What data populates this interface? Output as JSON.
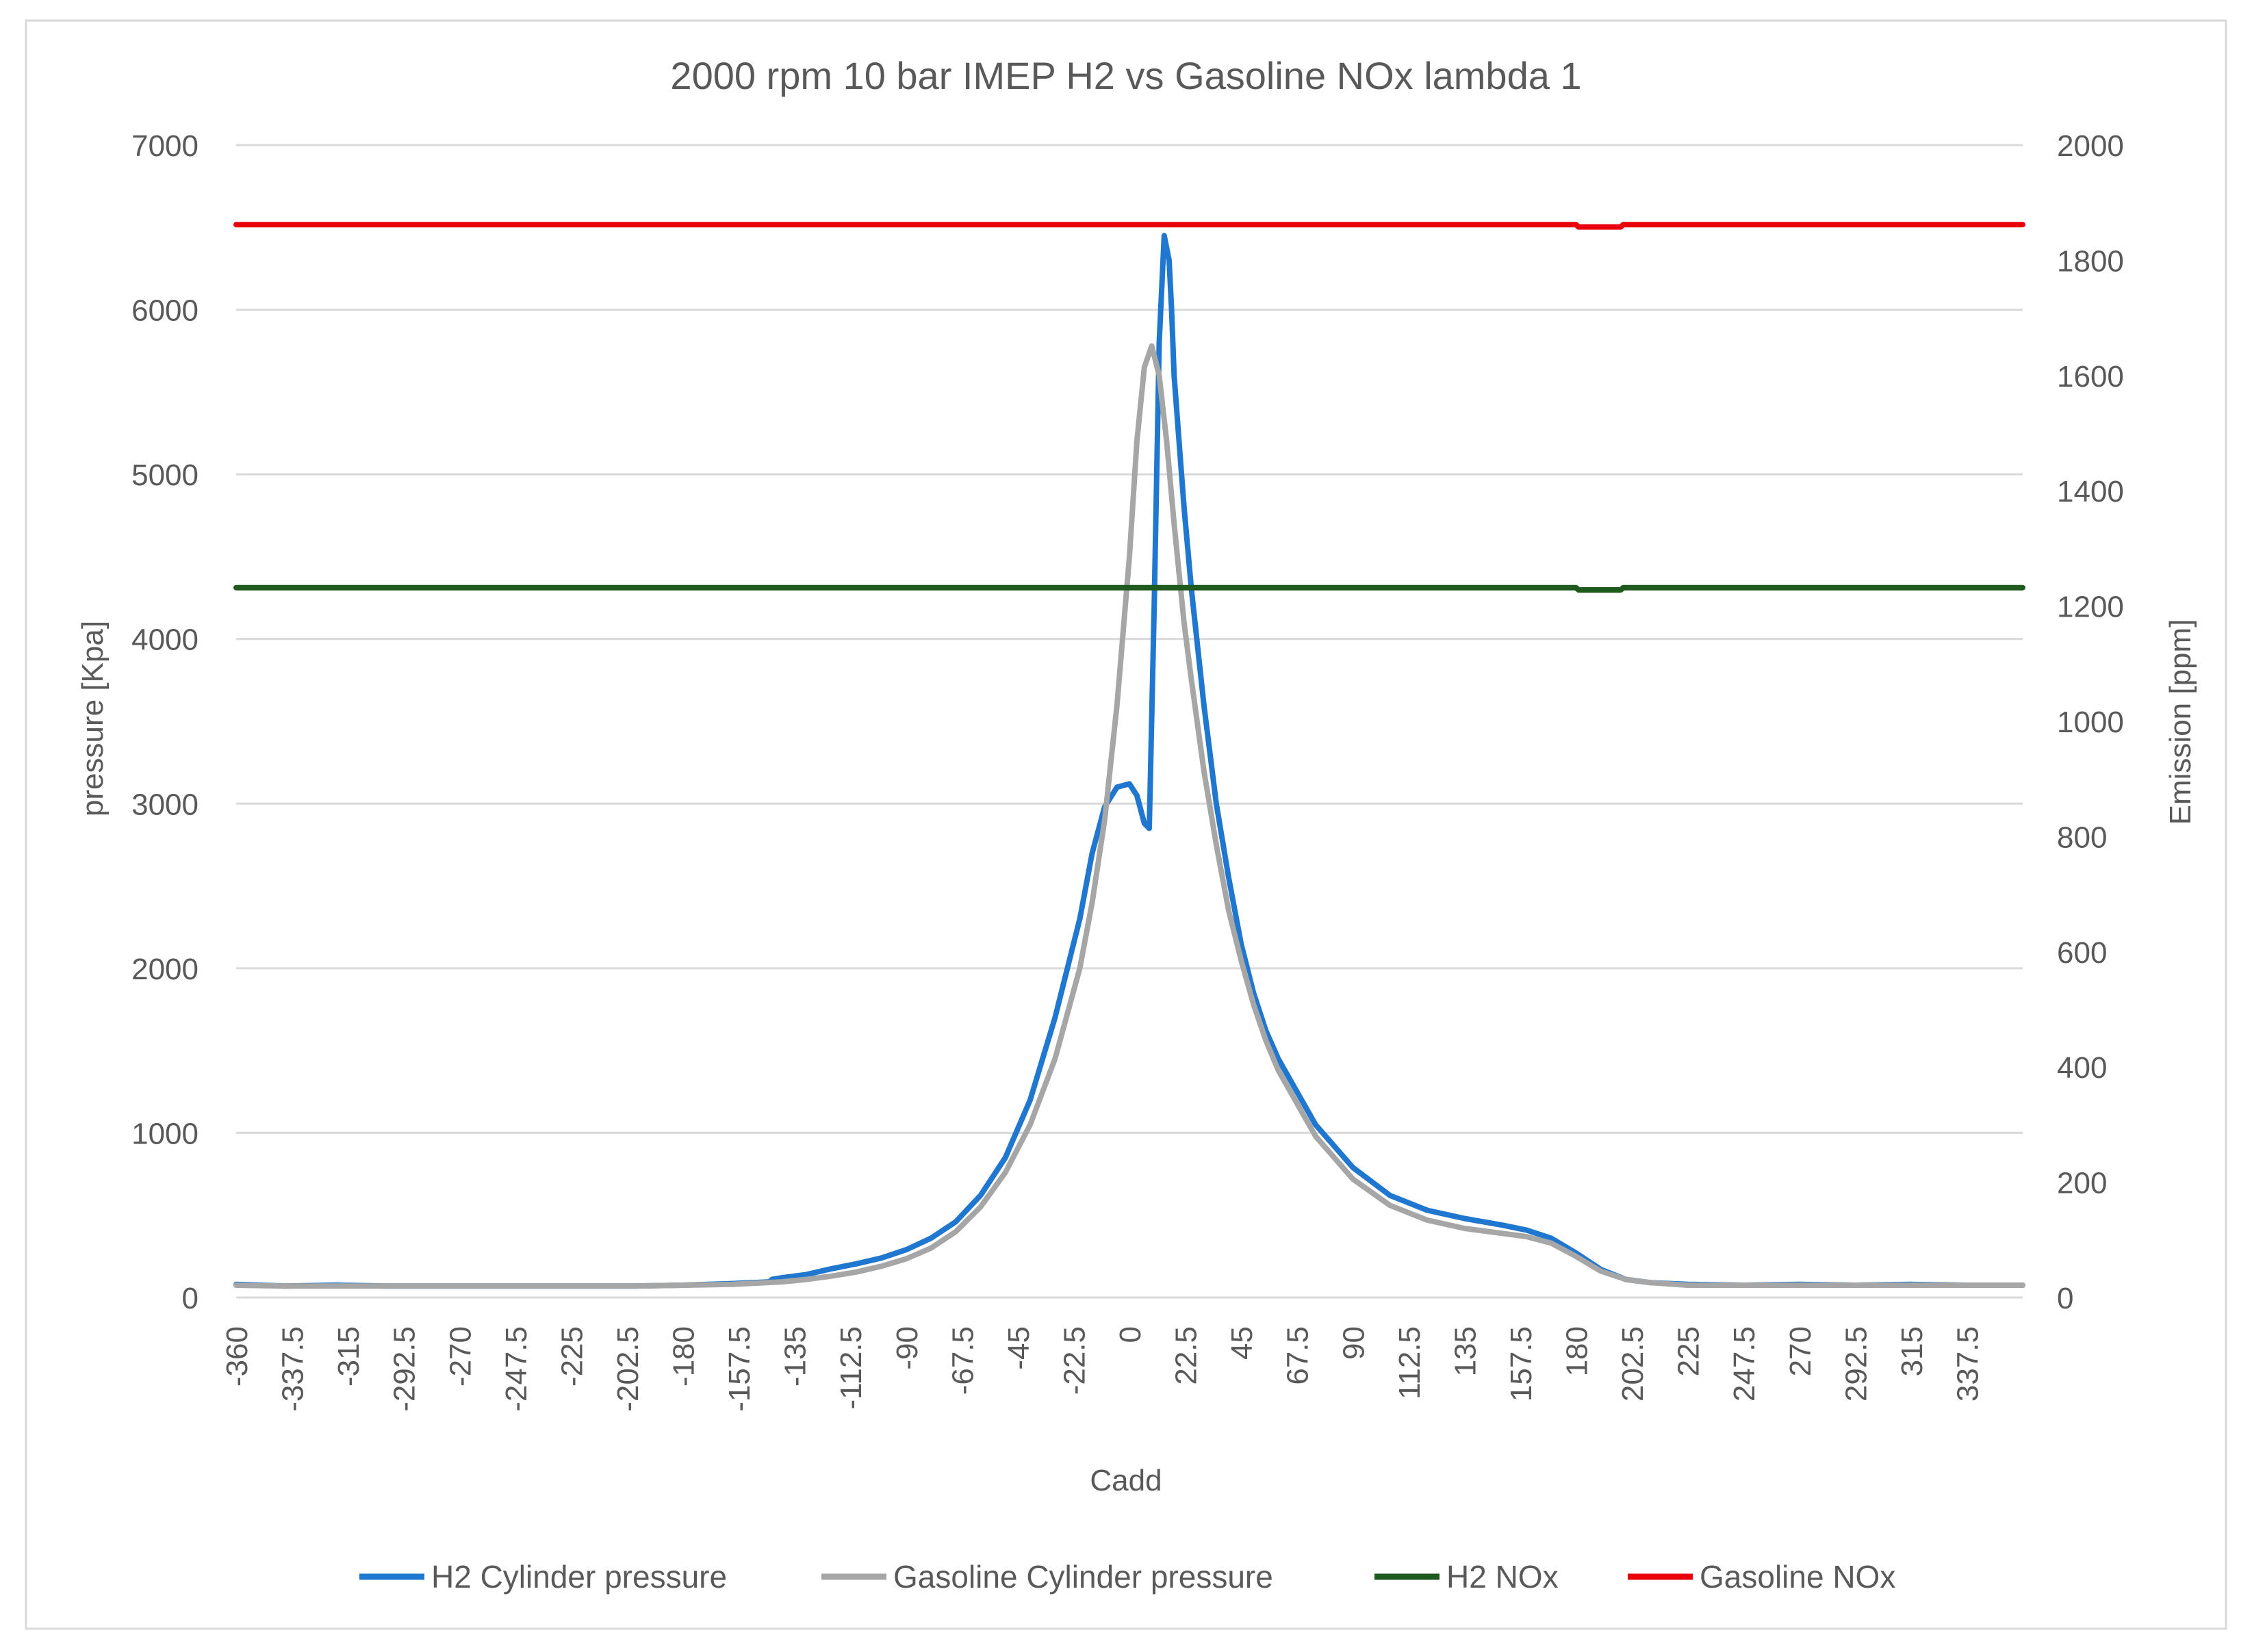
{
  "chart_data": {
    "type": "line",
    "title": "2000 rpm 10 bar IMEP H2 vs Gasoline NOx lambda 1",
    "xlabel": "Cadd",
    "ylabel": "pressure [Kpa]",
    "y2label": "Emission [ppm]",
    "xlim": [
      -360,
      360
    ],
    "ylim": [
      0,
      7000
    ],
    "y2lim": [
      0,
      2000
    ],
    "x_tick_labels": [
      "-360",
      "-337.5",
      "-315",
      "-292.5",
      "-270",
      "-247.5",
      "-225",
      "-202.5",
      "-180",
      "-157.5",
      "-135",
      "-112.5",
      "-90",
      "-67.5",
      "-45",
      "-22.5",
      "0",
      "22.5",
      "45",
      "67.5",
      "90",
      "112.5",
      "135",
      "157.5",
      "180",
      "202.5",
      "225",
      "247.5",
      "270",
      "292.5",
      "315",
      "337.5"
    ],
    "y_ticks": [
      0,
      1000,
      2000,
      3000,
      4000,
      5000,
      6000,
      7000
    ],
    "y2_ticks": [
      0,
      200,
      400,
      600,
      800,
      1000,
      1200,
      1400,
      1600,
      1800,
      2000
    ],
    "legend_position": "bottom",
    "colors": {
      "h2_pressure": "#1f77d0",
      "gasoline_pressure": "#a6a6a6",
      "h2_nox": "#1e5a1e",
      "gasoline_nox": "#e8000b"
    },
    "series": [
      {
        "name": "H2 Cylinder pressure",
        "axis": "left",
        "color_key": "h2_pressure",
        "x": [
          -360,
          -340,
          -320,
          -300,
          -280,
          -260,
          -240,
          -220,
          -200,
          -180,
          -160,
          -145,
          -144,
          -140,
          -130,
          -120,
          -110,
          -100,
          -90,
          -80,
          -70,
          -60,
          -50,
          -40,
          -30,
          -20,
          -15,
          -10,
          -5,
          0,
          3,
          6,
          8,
          10,
          12,
          14,
          16,
          17,
          18,
          20,
          22,
          25,
          30,
          35,
          40,
          45,
          50,
          55,
          60,
          67.5,
          75,
          90,
          105,
          120,
          135,
          150,
          160,
          170,
          180,
          190,
          200,
          210,
          225,
          247.5,
          270,
          292.5,
          315,
          337.5,
          360
        ],
        "y": [
          80,
          70,
          75,
          70,
          70,
          70,
          70,
          70,
          70,
          75,
          85,
          95,
          110,
          120,
          140,
          175,
          205,
          240,
          290,
          360,
          460,
          620,
          850,
          1200,
          1700,
          2300,
          2700,
          2980,
          3100,
          3120,
          3050,
          2880,
          2850,
          4200,
          5800,
          6450,
          6300,
          6000,
          5600,
          5200,
          4800,
          4300,
          3600,
          3000,
          2550,
          2150,
          1850,
          1620,
          1450,
          1250,
          1050,
          790,
          620,
          530,
          480,
          440,
          410,
          360,
          270,
          170,
          110,
          90,
          80,
          75,
          80,
          75,
          80,
          75,
          75
        ]
      },
      {
        "name": "Gasoline Cylinder pressure",
        "axis": "left",
        "color_key": "gasoline_pressure",
        "x": [
          -360,
          -340,
          -320,
          -300,
          -280,
          -260,
          -240,
          -220,
          -200,
          -180,
          -160,
          -140,
          -130,
          -120,
          -110,
          -100,
          -90,
          -80,
          -70,
          -60,
          -50,
          -40,
          -30,
          -20,
          -15,
          -10,
          -5,
          0,
          3,
          6,
          9,
          12,
          15,
          18,
          20,
          22,
          25,
          30,
          35,
          40,
          45,
          50,
          55,
          60,
          67.5,
          75,
          90,
          105,
          120,
          135,
          150,
          160,
          170,
          180,
          190,
          200,
          210,
          225,
          247.5,
          270,
          292.5,
          315,
          337.5,
          360
        ],
        "y": [
          75,
          70,
          70,
          70,
          70,
          70,
          70,
          70,
          70,
          75,
          80,
          95,
          110,
          130,
          155,
          190,
          235,
          300,
          400,
          550,
          760,
          1050,
          1450,
          2000,
          2400,
          2900,
          3600,
          4500,
          5200,
          5650,
          5780,
          5600,
          5200,
          4700,
          4400,
          4100,
          3750,
          3200,
          2750,
          2350,
          2050,
          1780,
          1560,
          1380,
          1180,
          980,
          720,
          560,
          470,
          420,
          390,
          370,
          330,
          250,
          160,
          110,
          90,
          75,
          75,
          75,
          75,
          75,
          75,
          75
        ]
      },
      {
        "name": "H2 NOx",
        "axis": "right",
        "color_key": "h2_nox",
        "x": [
          -360,
          180,
          181,
          198,
          199,
          360
        ],
        "y": [
          1232,
          1232,
          1228,
          1228,
          1232,
          1232
        ]
      },
      {
        "name": "Gasoline NOx",
        "axis": "right",
        "color_key": "gasoline_nox",
        "x": [
          -360,
          180,
          181,
          198,
          199,
          360
        ],
        "y": [
          1862,
          1862,
          1858,
          1858,
          1862,
          1862
        ]
      }
    ]
  }
}
